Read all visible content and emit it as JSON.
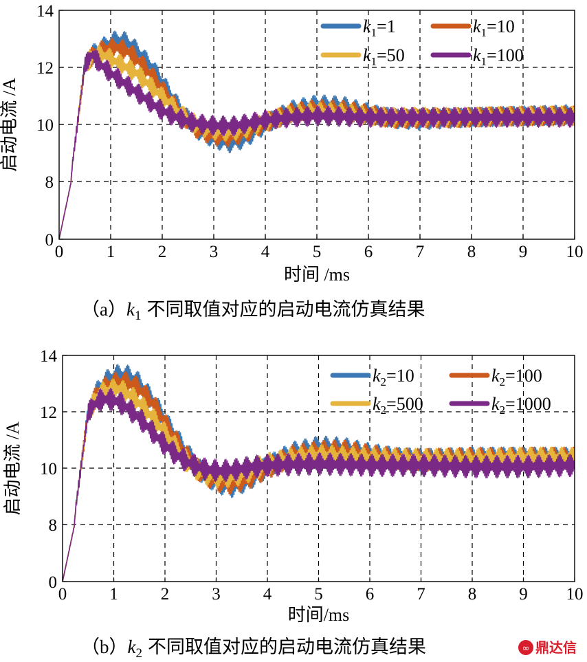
{
  "charts": [
    {
      "caption_prefix": "（a）",
      "caption_var": "k",
      "caption_sub": "1",
      "caption_text": "不同取值对应的启动电流仿真结果",
      "legend": [
        {
          "var": "k",
          "sub": "1",
          "val": "=1",
          "color": "#3c78b4"
        },
        {
          "var": "k",
          "sub": "1",
          "val": "=10",
          "color": "#cc5a1c"
        },
        {
          "var": "k",
          "sub": "1",
          "val": "=50",
          "color": "#e6b43c"
        },
        {
          "var": "k",
          "sub": "1",
          "val": "=100",
          "color": "#7a2a86"
        }
      ]
    },
    {
      "caption_prefix": "（b）",
      "caption_var": "k",
      "caption_sub": "2",
      "caption_text": "不同取值对应的启动电流仿真结果",
      "legend": [
        {
          "var": "k",
          "sub": "2",
          "val": "=10",
          "color": "#3c78b4"
        },
        {
          "var": "k",
          "sub": "2",
          "val": "=100",
          "color": "#cc5a1c"
        },
        {
          "var": "k",
          "sub": "2",
          "val": "=500",
          "color": "#e6b43c"
        },
        {
          "var": "k",
          "sub": "2",
          "val": "=1000",
          "color": "#7a2a86"
        }
      ]
    }
  ],
  "watermark": "鼎达信",
  "chart_data": [
    {
      "type": "line",
      "xlabel": "时间 /ms",
      "ylabel": "启动电流 /A",
      "xlim": [
        0,
        10
      ],
      "ylim": [
        0,
        14
      ],
      "x_ticks": [
        "0",
        "1",
        "2",
        "3",
        "4",
        "5",
        "6",
        "7",
        "8",
        "9",
        "10"
      ],
      "y_ticks": [
        "0",
        "8",
        "10",
        "12",
        "14"
      ],
      "y_scale": "broken axis: 0 then 8–14",
      "grid": true,
      "legend_position": "top-right",
      "ripple_amplitude_A": 0.35,
      "series": [
        {
          "name": "k1=1",
          "color": "#3c78b4",
          "points": [
            [
              0,
              0
            ],
            [
              0.25,
              8.5
            ],
            [
              0.5,
              12.1
            ],
            [
              0.7,
              12.55
            ],
            [
              0.9,
              12.75
            ],
            [
              1.1,
              12.95
            ],
            [
              1.3,
              12.9
            ],
            [
              1.5,
              12.6
            ],
            [
              1.8,
              12.0
            ],
            [
              2.1,
              11.2
            ],
            [
              2.4,
              10.4
            ],
            [
              2.7,
              9.8
            ],
            [
              3.0,
              9.5
            ],
            [
              3.3,
              9.35
            ],
            [
              3.6,
              9.5
            ],
            [
              4.0,
              10.0
            ],
            [
              4.5,
              10.5
            ],
            [
              5.0,
              10.7
            ],
            [
              5.5,
              10.65
            ],
            [
              6.0,
              10.4
            ],
            [
              6.5,
              10.2
            ],
            [
              7.0,
              10.15
            ],
            [
              8.0,
              10.25
            ],
            [
              9.0,
              10.3
            ],
            [
              10.0,
              10.35
            ]
          ]
        },
        {
          "name": "k1=10",
          "color": "#cc5a1c",
          "points": [
            [
              0,
              0
            ],
            [
              0.25,
              8.5
            ],
            [
              0.5,
              12.1
            ],
            [
              0.7,
              12.5
            ],
            [
              0.9,
              12.65
            ],
            [
              1.1,
              12.7
            ],
            [
              1.3,
              12.6
            ],
            [
              1.5,
              12.3
            ],
            [
              1.8,
              11.7
            ],
            [
              2.1,
              11.0
            ],
            [
              2.4,
              10.3
            ],
            [
              2.7,
              9.8
            ],
            [
              3.0,
              9.6
            ],
            [
              3.3,
              9.55
            ],
            [
              3.6,
              9.7
            ],
            [
              4.0,
              10.05
            ],
            [
              4.5,
              10.4
            ],
            [
              5.0,
              10.55
            ],
            [
              5.5,
              10.5
            ],
            [
              6.0,
              10.35
            ],
            [
              6.5,
              10.2
            ],
            [
              7.0,
              10.2
            ],
            [
              8.0,
              10.25
            ],
            [
              9.0,
              10.3
            ],
            [
              10.0,
              10.3
            ]
          ]
        },
        {
          "name": "k1=50",
          "color": "#e6b43c",
          "points": [
            [
              0,
              0
            ],
            [
              0.25,
              8.5
            ],
            [
              0.5,
              12.1
            ],
            [
              0.7,
              12.45
            ],
            [
              0.9,
              12.4
            ],
            [
              1.1,
              12.2
            ],
            [
              1.3,
              12.0
            ],
            [
              1.5,
              11.8
            ],
            [
              1.8,
              11.3
            ],
            [
              2.1,
              10.8
            ],
            [
              2.4,
              10.3
            ],
            [
              2.7,
              9.95
            ],
            [
              3.0,
              9.8
            ],
            [
              3.3,
              9.75
            ],
            [
              3.6,
              9.85
            ],
            [
              4.0,
              10.1
            ],
            [
              4.5,
              10.35
            ],
            [
              5.0,
              10.45
            ],
            [
              5.5,
              10.4
            ],
            [
              6.0,
              10.3
            ],
            [
              6.5,
              10.25
            ],
            [
              7.0,
              10.25
            ],
            [
              8.0,
              10.25
            ],
            [
              9.0,
              10.3
            ],
            [
              10.0,
              10.3
            ]
          ]
        },
        {
          "name": "k1=100",
          "color": "#7a2a86",
          "points": [
            [
              0,
              0
            ],
            [
              0.25,
              8.5
            ],
            [
              0.5,
              12.1
            ],
            [
              0.65,
              12.45
            ],
            [
              0.8,
              12.1
            ],
            [
              1.0,
              11.8
            ],
            [
              1.3,
              11.4
            ],
            [
              1.6,
              11.0
            ],
            [
              1.9,
              10.6
            ],
            [
              2.2,
              10.3
            ],
            [
              2.5,
              10.1
            ],
            [
              2.8,
              10.0
            ],
            [
              3.1,
              9.95
            ],
            [
              3.4,
              9.95
            ],
            [
              3.7,
              10.05
            ],
            [
              4.0,
              10.15
            ],
            [
              4.5,
              10.25
            ],
            [
              5.0,
              10.3
            ],
            [
              6.0,
              10.25
            ],
            [
              7.0,
              10.25
            ],
            [
              8.0,
              10.25
            ],
            [
              9.0,
              10.25
            ],
            [
              10.0,
              10.25
            ]
          ]
        }
      ]
    },
    {
      "type": "line",
      "xlabel": "时间/ms",
      "ylabel": "启动电流 /A",
      "xlim": [
        0,
        10
      ],
      "ylim": [
        0,
        14
      ],
      "x_ticks": [
        "0",
        "1",
        "2",
        "3",
        "4",
        "5",
        "6",
        "7",
        "8",
        "9",
        "10"
      ],
      "y_ticks": [
        "0",
        "8",
        "10",
        "12",
        "14"
      ],
      "y_scale": "broken axis: 0 then 8–14",
      "grid": true,
      "legend_position": "top-right",
      "ripple_amplitude_A": 0.4,
      "series": [
        {
          "name": "k2=10",
          "color": "#3c78b4",
          "points": [
            [
              0,
              0
            ],
            [
              0.25,
              8.5
            ],
            [
              0.5,
              12.0
            ],
            [
              0.7,
              12.8
            ],
            [
              0.9,
              13.15
            ],
            [
              1.1,
              13.3
            ],
            [
              1.3,
              13.25
            ],
            [
              1.5,
              13.0
            ],
            [
              1.8,
              12.3
            ],
            [
              2.1,
              11.4
            ],
            [
              2.4,
              10.6
            ],
            [
              2.7,
              9.9
            ],
            [
              3.0,
              9.5
            ],
            [
              3.3,
              9.35
            ],
            [
              3.6,
              9.55
            ],
            [
              4.0,
              10.05
            ],
            [
              4.5,
              10.55
            ],
            [
              5.0,
              10.75
            ],
            [
              5.5,
              10.7
            ],
            [
              6.0,
              10.5
            ],
            [
              6.5,
              10.35
            ],
            [
              7.0,
              10.3
            ],
            [
              8.0,
              10.35
            ],
            [
              9.0,
              10.35
            ],
            [
              10.0,
              10.35
            ]
          ]
        },
        {
          "name": "k2=100",
          "color": "#cc5a1c",
          "points": [
            [
              0,
              0
            ],
            [
              0.25,
              8.5
            ],
            [
              0.5,
              12.0
            ],
            [
              0.7,
              12.7
            ],
            [
              0.9,
              12.95
            ],
            [
              1.1,
              13.05
            ],
            [
              1.3,
              13.0
            ],
            [
              1.5,
              12.8
            ],
            [
              1.8,
              12.2
            ],
            [
              2.1,
              11.3
            ],
            [
              2.4,
              10.5
            ],
            [
              2.7,
              9.85
            ],
            [
              3.0,
              9.55
            ],
            [
              3.3,
              9.45
            ],
            [
              3.6,
              9.6
            ],
            [
              4.0,
              10.0
            ],
            [
              4.5,
              10.45
            ],
            [
              5.0,
              10.6
            ],
            [
              5.5,
              10.6
            ],
            [
              6.0,
              10.45
            ],
            [
              6.5,
              10.35
            ],
            [
              7.0,
              10.3
            ],
            [
              8.0,
              10.35
            ],
            [
              9.0,
              10.35
            ],
            [
              10.0,
              10.35
            ]
          ]
        },
        {
          "name": "k2=500",
          "color": "#e6b43c",
          "points": [
            [
              0,
              0
            ],
            [
              0.25,
              8.5
            ],
            [
              0.5,
              12.0
            ],
            [
              0.7,
              12.6
            ],
            [
              0.9,
              12.75
            ],
            [
              1.1,
              12.8
            ],
            [
              1.3,
              12.6
            ],
            [
              1.5,
              12.3
            ],
            [
              1.8,
              11.7
            ],
            [
              2.1,
              11.0
            ],
            [
              2.4,
              10.3
            ],
            [
              2.7,
              9.85
            ],
            [
              3.0,
              9.7
            ],
            [
              3.3,
              9.7
            ],
            [
              3.6,
              9.85
            ],
            [
              4.0,
              10.15
            ],
            [
              4.5,
              10.35
            ],
            [
              5.0,
              10.45
            ],
            [
              6.0,
              10.35
            ],
            [
              7.0,
              10.3
            ],
            [
              8.0,
              10.3
            ],
            [
              9.0,
              10.35
            ],
            [
              10.0,
              10.35
            ]
          ]
        },
        {
          "name": "k2=1000",
          "color": "#7a2a86",
          "points": [
            [
              0,
              0
            ],
            [
              0.25,
              8.5
            ],
            [
              0.5,
              12.0
            ],
            [
              0.7,
              12.4
            ],
            [
              0.9,
              12.45
            ],
            [
              1.1,
              12.35
            ],
            [
              1.3,
              12.1
            ],
            [
              1.6,
              11.6
            ],
            [
              1.9,
              11.0
            ],
            [
              2.2,
              10.5
            ],
            [
              2.5,
              10.15
            ],
            [
              2.8,
              9.95
            ],
            [
              3.1,
              9.9
            ],
            [
              3.4,
              9.95
            ],
            [
              3.7,
              10.05
            ],
            [
              4.0,
              10.1
            ],
            [
              5.0,
              10.15
            ],
            [
              6.0,
              10.1
            ],
            [
              7.0,
              10.1
            ],
            [
              8.0,
              10.05
            ],
            [
              9.0,
              10.05
            ],
            [
              10.0,
              10.1
            ]
          ]
        }
      ]
    }
  ]
}
